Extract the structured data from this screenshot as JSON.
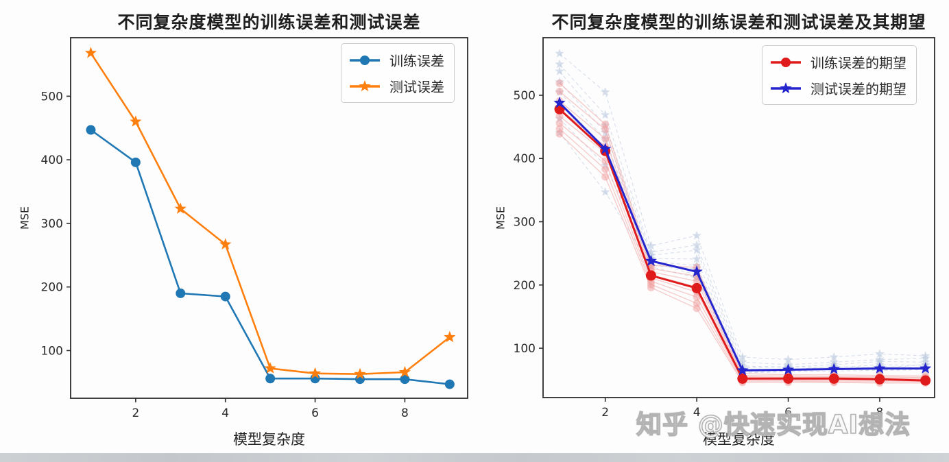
{
  "page": {
    "background": "#fdfdfd",
    "bottom_strip_color": "#c9cdd1",
    "axis_color": "#2b2b2b"
  },
  "watermark": {
    "text": "知乎 @快速实现AI想法",
    "fill": "#ffffff",
    "outline": "#b3b3b3"
  },
  "chart_data": [
    {
      "type": "line",
      "title": "不同复杂度模型的训练误差和测试误差",
      "xlabel": "模型复杂度",
      "ylabel": "MSE",
      "x": [
        1,
        2,
        3,
        4,
        5,
        6,
        7,
        8,
        9
      ],
      "xticks": [
        2,
        4,
        6,
        8
      ],
      "yticks": [
        100,
        200,
        300,
        400,
        500
      ],
      "xlim": [
        0.55,
        9.4
      ],
      "ylim": [
        25,
        592
      ],
      "grid": false,
      "legend_position": "upper right",
      "series": [
        {
          "name": "训练误差",
          "color": "#1f77b4",
          "marker": "circle",
          "line_width": 2.6,
          "marker_size": 7,
          "values": [
            447,
            396,
            190,
            185,
            56,
            56,
            55,
            55,
            47
          ]
        },
        {
          "name": "测试误差",
          "color": "#ff7f0e",
          "marker": "star",
          "line_width": 2.6,
          "marker_size": 7,
          "values": [
            568,
            460,
            323,
            267,
            72,
            64,
            63,
            66,
            121
          ]
        }
      ]
    },
    {
      "type": "line",
      "title": "不同复杂度模型的训练误差和测试误差及其期望",
      "xlabel": "模型复杂度",
      "ylabel": "MSE",
      "x": [
        1,
        2,
        3,
        4,
        5,
        6,
        7,
        8,
        9
      ],
      "xticks": [
        2,
        4,
        6,
        8
      ],
      "yticks": [
        100,
        200,
        300,
        400,
        500
      ],
      "xlim": [
        0.64,
        9.2
      ],
      "ylim": [
        22,
        591
      ],
      "grid": false,
      "legend_position": "upper right",
      "series": [
        {
          "name": "训练误差的期望",
          "color": "#e01b1b",
          "marker": "circle",
          "line_width": 3,
          "marker_size": 7.5,
          "values": [
            478,
            412,
            215,
            195,
            52,
            52,
            52,
            51,
            49
          ]
        },
        {
          "name": "测试误差的期望",
          "color": "#2525cd",
          "marker": "star",
          "line_width": 3,
          "marker_size": 7,
          "values": [
            488,
            415,
            238,
            221,
            65,
            66,
            67,
            68,
            68
          ]
        }
      ],
      "background_series": {
        "train_color": "#f09c9c",
        "test_color": "#b6c4dc",
        "train_runs": [
          [
            519,
            454,
            231,
            228,
            60,
            58,
            58,
            57,
            56
          ],
          [
            506,
            446,
            226,
            214,
            57,
            56,
            55,
            55,
            54
          ],
          [
            491,
            431,
            221,
            206,
            55,
            54,
            54,
            53,
            53
          ],
          [
            479,
            419,
            216,
            197,
            53,
            52,
            52,
            52,
            51
          ],
          [
            467,
            409,
            211,
            189,
            51,
            51,
            50,
            50,
            50
          ],
          [
            456,
            396,
            206,
            181,
            50,
            49,
            49,
            49,
            48
          ],
          [
            447,
            383,
            201,
            171,
            48,
            48,
            47,
            47,
            47
          ],
          [
            439,
            371,
            196,
            163,
            46,
            46,
            46,
            45,
            45
          ]
        ],
        "test_runs": [
          [
            566,
            505,
            262,
            278,
            86,
            82,
            86,
            91,
            88
          ],
          [
            549,
            469,
            252,
            263,
            78,
            74,
            78,
            82,
            84
          ],
          [
            538,
            452,
            247,
            255,
            72,
            70,
            74,
            79,
            78
          ],
          [
            521,
            441,
            242,
            241,
            69,
            71,
            69,
            74,
            73
          ],
          [
            505,
            431,
            237,
            231,
            67,
            66,
            71,
            69,
            74
          ],
          [
            486,
            412,
            231,
            226,
            65,
            67,
            66,
            71,
            69
          ],
          [
            463,
            389,
            236,
            216,
            63,
            64,
            67,
            66,
            67
          ],
          [
            441,
            347,
            229,
            211,
            61,
            63,
            64,
            65,
            66
          ]
        ]
      }
    }
  ]
}
